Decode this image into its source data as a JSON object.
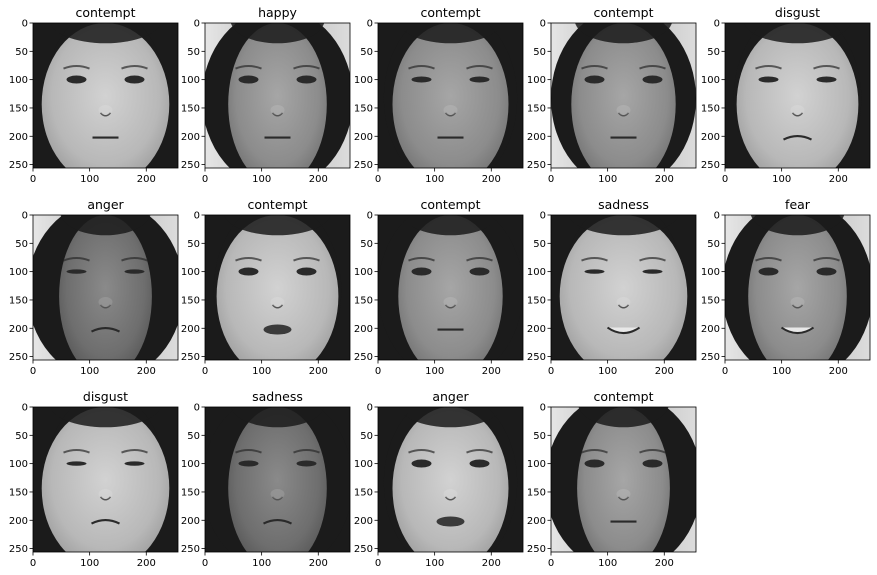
{
  "panels": [
    {
      "title": "contempt",
      "variant": 0
    },
    {
      "title": "happy",
      "variant": 1
    },
    {
      "title": "contempt",
      "variant": 2
    },
    {
      "title": "contempt",
      "variant": 3
    },
    {
      "title": "disgust",
      "variant": 4
    },
    {
      "title": "anger",
      "variant": 5
    },
    {
      "title": "contempt",
      "variant": 6
    },
    {
      "title": "contempt",
      "variant": 7
    },
    {
      "title": "sadness",
      "variant": 8
    },
    {
      "title": "fear",
      "variant": 9
    },
    {
      "title": "disgust",
      "variant": 10
    },
    {
      "title": "sadness",
      "variant": 11
    },
    {
      "title": "anger",
      "variant": 12
    },
    {
      "title": "contempt",
      "variant": 13
    }
  ],
  "axes": {
    "x_ticks": [
      "0",
      "100",
      "200"
    ],
    "y_ticks": [
      "0",
      "50",
      "100",
      "150",
      "200",
      "250"
    ]
  },
  "colors": {
    "axis": "#000000",
    "title": "#000000",
    "background": "#ffffff",
    "hair": "#1b1b1b",
    "face_light": "#c4c4c4",
    "face_mid": "#8e8e8e",
    "face_dark": "#6a6a6a",
    "feature": "#2a2a2a"
  }
}
